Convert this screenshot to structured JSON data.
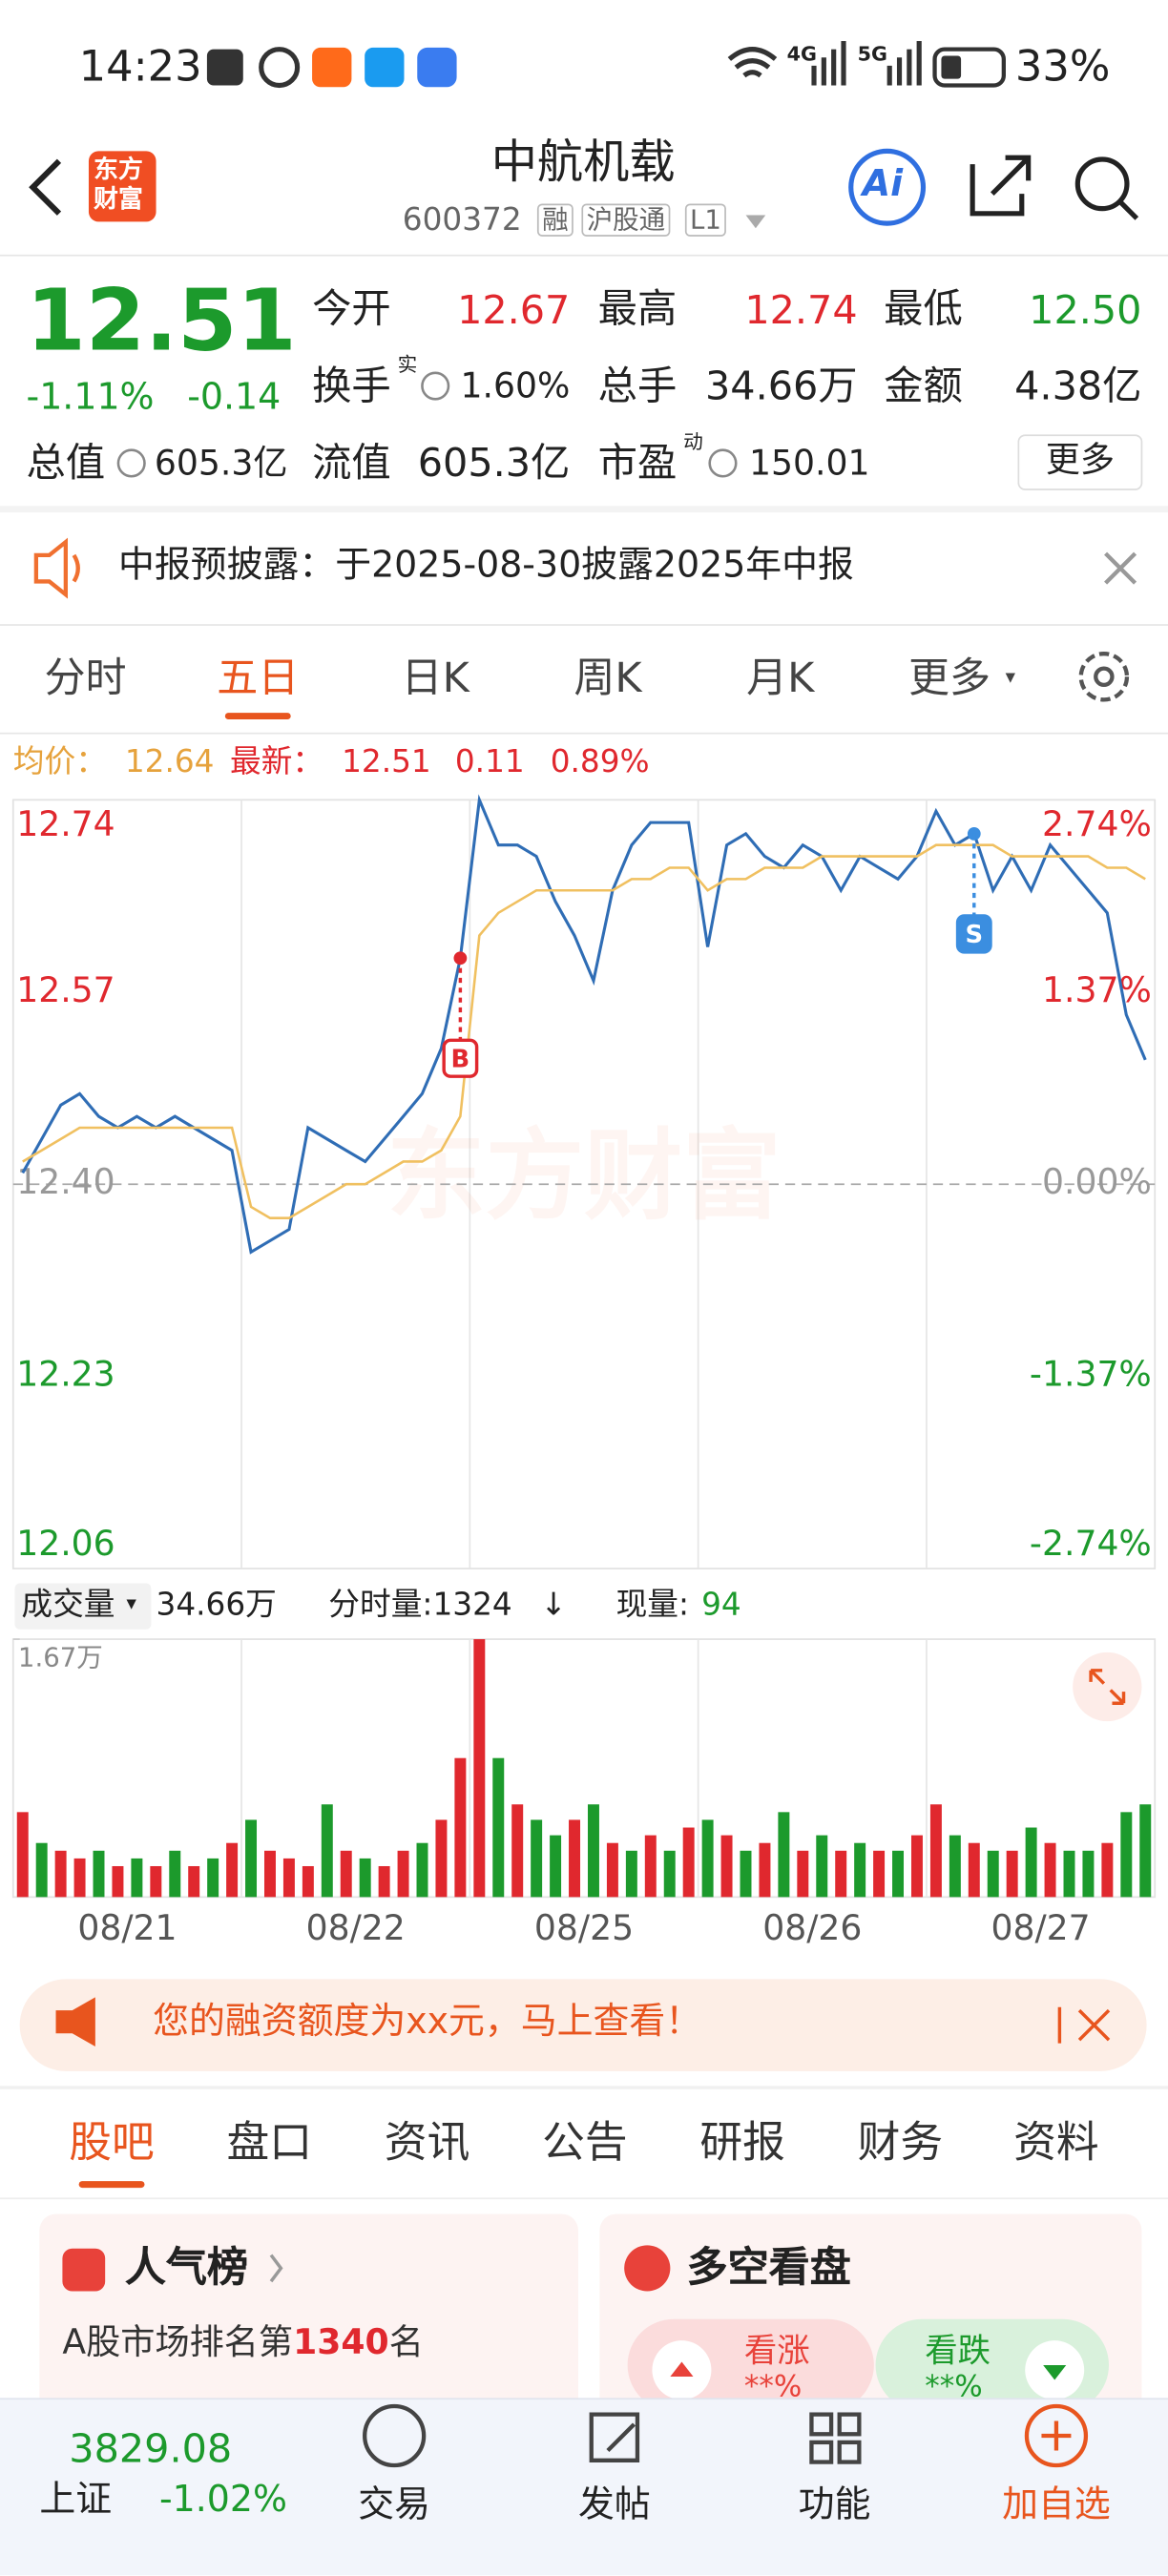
{
  "status_bar": {
    "time": "14:23",
    "network_a": "4G",
    "network_b": "5G",
    "battery": "33%"
  },
  "header": {
    "logo": [
      "东方",
      "财富"
    ],
    "title": "中航机载",
    "code": "600372",
    "tags": [
      "融",
      "沪股通",
      "L1"
    ],
    "ai": "Ai"
  },
  "quote": {
    "price": "12.51",
    "change_pct": "-1.11%",
    "change": "-0.14",
    "fields": [
      {
        "label": "今开",
        "value": "12.67"
      },
      {
        "label": "最高",
        "value": "12.74"
      },
      {
        "label": "最低",
        "value": "12.50"
      },
      {
        "label": "换手",
        "sup": "实",
        "value": "1.60%"
      },
      {
        "label": "总手",
        "value": "34.66万"
      },
      {
        "label": "金额",
        "value": "4.38亿"
      },
      {
        "label": "总值",
        "value": "605.3亿"
      },
      {
        "label": "流值",
        "value": "605.3亿"
      },
      {
        "label": "市盈",
        "sup": "动",
        "value": "150.01"
      }
    ],
    "more": "更多"
  },
  "notice": "中报预披露：于2025-08-30披露2025年中报",
  "tabs": [
    "分时",
    "五日",
    "日K",
    "周K",
    "月K",
    "更多"
  ],
  "chart_header": {
    "avg_label": "均价：",
    "avg": "12.64",
    "latest_label": "最新：",
    "latest": "12.51",
    "change": "0.11",
    "change_pct": "0.89%"
  },
  "volume_header": {
    "label": "成交量",
    "total": "34.66万",
    "tick_volume": "分时量:1324",
    "arrow": "↓",
    "current_label": "现量:",
    "current": "94"
  },
  "banner": "您的融资额度为xx元，马上查看！",
  "sub_tabs": [
    "股吧",
    "盘口",
    "资讯",
    "公告",
    "研报",
    "财务",
    "资料"
  ],
  "cards": {
    "rank_title": "人气榜",
    "rank_prefix": "A股市场排名第",
    "rank": "1340",
    "rank_suffix": "名",
    "vs_title": "多空看盘",
    "bull": "看涨",
    "bull_value": "**%",
    "bear": "看跌",
    "bear_value": "**%"
  },
  "bottom_bar": {
    "index_value": "3829.08",
    "index_name": "上证",
    "index_change": "-1.02%",
    "items": [
      "交易",
      "发帖",
      "功能",
      "加自选"
    ]
  },
  "chart_data": [
    {
      "type": "line",
      "watermark": "东方财富",
      "x_labels": [
        "08/21",
        "08/22",
        "08/25",
        "08/26",
        "08/27"
      ],
      "series": [
        {
          "color": "#2f6db5",
          "values": [
            12.41,
            12.44,
            12.47,
            12.48,
            12.46,
            12.45,
            12.46,
            12.45,
            12.46,
            12.45,
            12.44,
            12.43,
            12.34,
            12.35,
            12.36,
            12.45,
            12.44,
            12.43,
            12.42,
            12.44,
            12.46,
            12.48,
            12.52,
            12.6,
            12.74,
            12.7,
            12.7,
            12.69,
            12.65,
            12.62,
            12.58,
            12.66,
            12.7,
            12.72,
            12.72,
            12.72,
            12.61,
            12.7,
            12.71,
            12.69,
            12.68,
            12.7,
            12.69,
            12.66,
            12.69,
            12.68,
            12.67,
            12.69,
            12.73,
            12.7,
            12.71,
            12.66,
            12.69,
            12.66,
            12.7,
            12.68,
            12.66,
            12.64,
            12.55,
            12.51
          ]
        },
        {
          "color": "#f0c060",
          "values": [
            12.42,
            12.43,
            12.44,
            12.45,
            12.45,
            12.45,
            12.45,
            12.45,
            12.45,
            12.45,
            12.45,
            12.45,
            12.38,
            12.37,
            12.37,
            12.38,
            12.39,
            12.4,
            12.4,
            12.41,
            12.42,
            12.42,
            12.43,
            12.46,
            12.62,
            12.64,
            12.65,
            12.66,
            12.66,
            12.66,
            12.66,
            12.66,
            12.67,
            12.67,
            12.68,
            12.68,
            12.66,
            12.67,
            12.67,
            12.68,
            12.68,
            12.68,
            12.69,
            12.69,
            12.69,
            12.69,
            12.69,
            12.69,
            12.7,
            12.7,
            12.7,
            12.7,
            12.69,
            12.69,
            12.69,
            12.69,
            12.69,
            12.68,
            12.68,
            12.67
          ]
        }
      ],
      "ylim": [
        12.06,
        12.74
      ],
      "yticks": [
        12.74,
        12.57,
        {
          "value": 12.4,
          "label": "12.40"
        },
        12.23,
        12.06
      ],
      "y2lim": [
        -2.74,
        2.74
      ],
      "y2ticks": [
        {
          "value": 2.74,
          "label": "2.74%"
        },
        {
          "value": 1.37,
          "label": "1.37%"
        },
        {
          "value": 0,
          "label": "0.00%"
        },
        {
          "value": -1.37,
          "label": "-1.37%"
        },
        {
          "value": -2.74,
          "label": "-2.74%"
        }
      ],
      "tick_colors": {
        "up": "#e0282e",
        "flat": "#999999",
        "down": "#1c9a2c"
      },
      "annotations": [
        {
          "text": "B",
          "at": 23,
          "color": "#e0282e"
        },
        {
          "text": "S",
          "at": 50,
          "color": "#3b8ee0"
        }
      ]
    },
    {
      "type": "bar",
      "values": [
        0.55,
        0.35,
        0.3,
        0.25,
        0.3,
        0.2,
        0.25,
        0.2,
        0.3,
        0.2,
        0.25,
        0.35,
        0.5,
        0.3,
        0.25,
        0.2,
        0.6,
        0.3,
        0.25,
        0.2,
        0.3,
        0.35,
        0.5,
        0.9,
        1.67,
        0.9,
        0.6,
        0.5,
        0.4,
        0.5,
        0.6,
        0.35,
        0.3,
        0.4,
        0.3,
        0.45,
        0.5,
        0.4,
        0.3,
        0.35,
        0.55,
        0.3,
        0.4,
        0.3,
        0.35,
        0.3,
        0.3,
        0.4,
        0.6,
        0.4,
        0.35,
        0.3,
        0.3,
        0.45,
        0.35,
        0.3,
        0.3,
        0.35,
        0.55,
        0.6
      ],
      "colors": [
        "#e0282e",
        "#1c9a2c",
        "#e0282e",
        "#e0282e",
        "#1c9a2c",
        "#e0282e",
        "#1c9a2c",
        "#e0282e",
        "#1c9a2c",
        "#e0282e",
        "#1c9a2c",
        "#e0282e",
        "#1c9a2c",
        "#e0282e",
        "#e0282e",
        "#e0282e",
        "#1c9a2c",
        "#e0282e",
        "#1c9a2c",
        "#e0282e",
        "#e0282e",
        "#1c9a2c",
        "#e0282e",
        "#e0282e",
        "#e0282e",
        "#1c9a2c",
        "#e0282e",
        "#1c9a2c",
        "#1c9a2c",
        "#e0282e",
        "#1c9a2c",
        "#e0282e",
        "#1c9a2c",
        "#e0282e",
        "#1c9a2c",
        "#e0282e",
        "#1c9a2c",
        "#e0282e",
        "#1c9a2c",
        "#e0282e",
        "#1c9a2c",
        "#e0282e",
        "#1c9a2c",
        "#e0282e",
        "#1c9a2c",
        "#e0282e",
        "#1c9a2c",
        "#e0282e",
        "#e0282e",
        "#1c9a2c",
        "#e0282e",
        "#1c9a2c",
        "#e0282e",
        "#1c9a2c",
        "#e0282e",
        "#1c9a2c",
        "#1c9a2c",
        "#e0282e",
        "#1c9a2c",
        "#1c9a2c"
      ],
      "ylim": [
        0,
        1.67
      ],
      "yticks": [
        {
          "value": 1.67,
          "label": "1.67万"
        }
      ]
    }
  ]
}
